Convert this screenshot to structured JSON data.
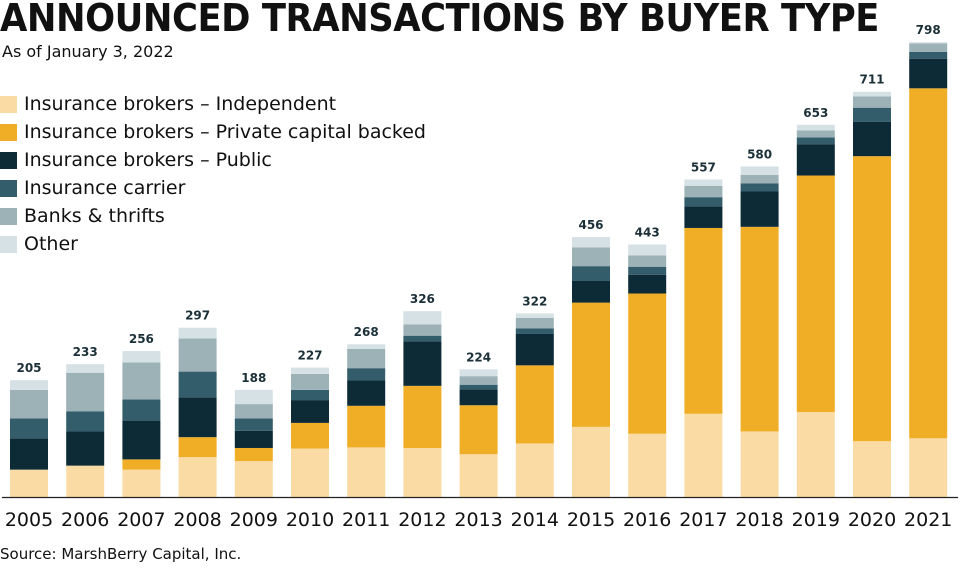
{
  "chart_data": {
    "type": "bar",
    "stacked": true,
    "title": "ANNOUNCED TRANSACTIONS BY BUYER TYPE",
    "subtitle": "As of January 3, 2022",
    "source": "Source: MarshBerry Capital, Inc.",
    "categories": [
      "2005",
      "2006",
      "2007",
      "2008",
      "2009",
      "2010",
      "2011",
      "2012",
      "2013",
      "2014",
      "2015",
      "2016",
      "2017",
      "2018",
      "2019",
      "2020",
      "2021"
    ],
    "totals": [
      205,
      233,
      256,
      297,
      188,
      227,
      268,
      326,
      224,
      322,
      456,
      443,
      557,
      580,
      653,
      711,
      798
    ],
    "ylim": [
      0,
      800
    ],
    "legend_position": "top-left",
    "series": [
      {
        "name": "Insurance brokers – Independent",
        "color": "#fbdba4",
        "values": [
          48,
          55,
          48,
          70,
          63,
          85,
          87,
          86,
          75,
          94,
          123,
          111,
          146,
          115,
          149,
          98,
          103
        ]
      },
      {
        "name": "Insurance brokers – Private capital backed",
        "color": "#efae26",
        "values": [
          0,
          0,
          18,
          35,
          23,
          45,
          73,
          109,
          86,
          137,
          218,
          246,
          326,
          359,
          415,
          500,
          614
        ]
      },
      {
        "name": "Insurance brokers – Public",
        "color": "#0d2a37",
        "values": [
          55,
          60,
          68,
          70,
          30,
          40,
          45,
          78,
          28,
          55,
          38,
          33,
          38,
          62,
          55,
          60,
          52
        ]
      },
      {
        "name": "Insurance carrier",
        "color": "#335d6b",
        "values": [
          35,
          35,
          37,
          45,
          22,
          18,
          21,
          10,
          8,
          10,
          26,
          14,
          16,
          14,
          12,
          25,
          12
        ]
      },
      {
        "name": "Banks & thrifts",
        "color": "#9db2b7",
        "values": [
          50,
          68,
          65,
          58,
          25,
          28,
          34,
          20,
          15,
          18,
          33,
          20,
          20,
          15,
          12,
          20,
          15
        ]
      },
      {
        "name": "Other",
        "color": "#d6e1e5",
        "values": [
          17,
          15,
          20,
          19,
          25,
          11,
          8,
          23,
          12,
          8,
          18,
          19,
          11,
          15,
          10,
          8,
          2
        ]
      }
    ]
  }
}
